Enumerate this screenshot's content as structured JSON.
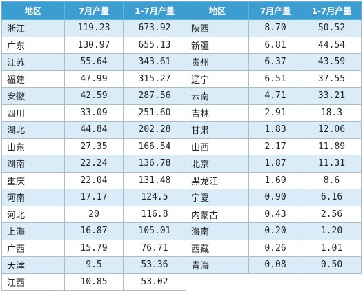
{
  "headers": [
    "地区",
    "7月产量",
    "1-7月产量",
    "地区",
    "7月产量",
    "1-7月产量"
  ],
  "rows": [
    {
      "left": {
        "region": "浙江",
        "july": "119.23",
        "cumulative": "673.92"
      },
      "right": {
        "region": "陕西",
        "july": "8.70",
        "cumulative": "50.52"
      }
    },
    {
      "left": {
        "region": "广东",
        "july": "130.97",
        "cumulative": "655.13"
      },
      "right": {
        "region": "新疆",
        "july": "6.81",
        "cumulative": "44.54"
      }
    },
    {
      "left": {
        "region": "江苏",
        "july": "55.64",
        "cumulative": "343.61"
      },
      "right": {
        "region": "贵州",
        "july": "6.37",
        "cumulative": "43.59"
      }
    },
    {
      "left": {
        "region": "福建",
        "july": "47.99",
        "cumulative": "315.27"
      },
      "right": {
        "region": "辽宁",
        "july": "6.51",
        "cumulative": "37.55"
      }
    },
    {
      "left": {
        "region": "安徽",
        "july": "42.59",
        "cumulative": "287.56"
      },
      "right": {
        "region": "云南",
        "july": "4.71",
        "cumulative": "33.21"
      }
    },
    {
      "left": {
        "region": "四川",
        "july": "33.09",
        "cumulative": "251.60"
      },
      "right": {
        "region": "吉林",
        "july": "2.91",
        "cumulative": "18.3"
      }
    },
    {
      "left": {
        "region": "湖北",
        "july": "44.84",
        "cumulative": "202.28"
      },
      "right": {
        "region": "甘肃",
        "july": "1.83",
        "cumulative": "12.06"
      }
    },
    {
      "left": {
        "region": "山东",
        "july": "27.35",
        "cumulative": "166.54"
      },
      "right": {
        "region": "山西",
        "july": "2.17",
        "cumulative": "11.89"
      }
    },
    {
      "left": {
        "region": "湖南",
        "july": "22.24",
        "cumulative": "136.78"
      },
      "right": {
        "region": "北京",
        "july": "1.87",
        "cumulative": "11.31"
      }
    },
    {
      "left": {
        "region": "重庆",
        "july": "22.04",
        "cumulative": "131.48"
      },
      "right": {
        "region": "黑龙江",
        "july": "1.69",
        "cumulative": "8.6"
      }
    },
    {
      "left": {
        "region": "河南",
        "july": "17.17",
        "cumulative": "124.5"
      },
      "right": {
        "region": "宁夏",
        "july": "0.90",
        "cumulative": "6.16"
      }
    },
    {
      "left": {
        "region": "河北",
        "july": "20",
        "cumulative": "116.8"
      },
      "right": {
        "region": "内蒙古",
        "july": "0.43",
        "cumulative": "2.56"
      }
    },
    {
      "left": {
        "region": "上海",
        "july": "16.87",
        "cumulative": "105.01"
      },
      "right": {
        "region": "海南",
        "july": "0.20",
        "cumulative": "1.20"
      }
    },
    {
      "left": {
        "region": "广西",
        "july": "15.79",
        "cumulative": "76.71"
      },
      "right": {
        "region": "西藏",
        "july": "0.26",
        "cumulative": "1.01"
      }
    },
    {
      "left": {
        "region": "天津",
        "july": "9.5",
        "cumulative": "53.36"
      },
      "right": {
        "region": "青海",
        "july": "0.08",
        "cumulative": "0.50"
      }
    },
    {
      "left": {
        "region": "江西",
        "july": "10.85",
        "cumulative": "53.02"
      },
      "right": null
    }
  ],
  "colors": {
    "header_bg": "#3c9dd1",
    "header_text": "#ffffff",
    "row_alt_bg": "#d9ecf8",
    "border": "#aebcc6"
  }
}
